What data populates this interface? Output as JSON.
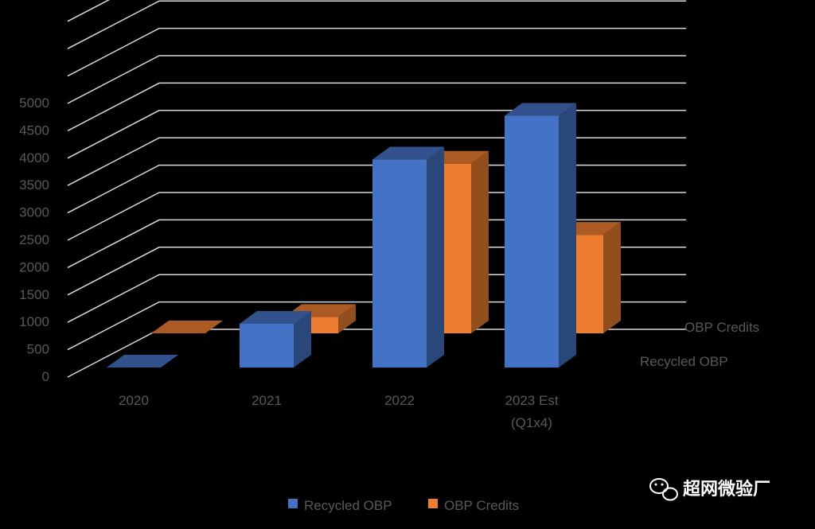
{
  "chart_data": {
    "type": "bar",
    "style": "3d-clustered-column",
    "categories": [
      "2020",
      "2021",
      "2022",
      "2023 Est\n(Q1x4)"
    ],
    "series": [
      {
        "name": "Recycled OBP",
        "color": "#4472C4",
        "values": [
          0,
          800,
          3800,
          4600
        ]
      },
      {
        "name": "OBP Credits",
        "color": "#ED7D31",
        "values": [
          0,
          300,
          3100,
          1800
        ]
      }
    ],
    "yticks": [
      "0",
      "500",
      "1000",
      "1500",
      "2000",
      "2500",
      "3000",
      "3500",
      "4000",
      "4500",
      "5000"
    ],
    "ylim": [
      0,
      7500
    ],
    "grid": true,
    "legend": "bottom"
  },
  "watermark": {
    "text": "超网微验厂",
    "icon": "wechat-icon"
  }
}
